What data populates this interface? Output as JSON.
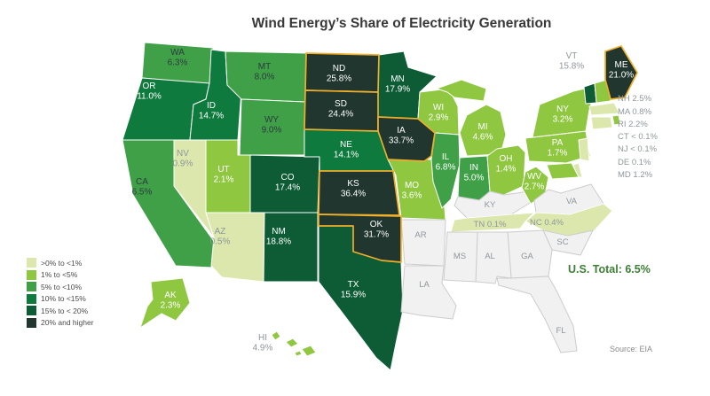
{
  "title": "Wind Energy’s Share of Electricity Generation",
  "us_total": "U.S. Total: 6.5%",
  "source": "Source: EIA",
  "colors": {
    "category_fills": [
      "#dbe7ad",
      "#8fc741",
      "#3fa047",
      "#0e7a3d",
      "#0d5c35",
      "#20362e"
    ],
    "no_data_fill": "#f1f1f1",
    "no_data_stroke": "#cccccc",
    "state_stroke": "#ffffff",
    "highlight_stroke": "#efae2d",
    "label_white": "#ffffff",
    "label_dark": "#2e3b40",
    "label_gray": "#8f979b",
    "us_total_color": "#3d7f35",
    "title_color": "#383838",
    "legend_text": "#4a4a4a",
    "source_color": "#8a8a8a"
  },
  "chart_data": {
    "type": "choropleth",
    "geography": "United States by state",
    "metric": "Wind energy's share of electricity generation",
    "unit": "percent",
    "us_total": "6.5%",
    "legend_categories": [
      ">0% to <1%",
      "1% to <5%",
      "5% to <10%",
      "10% to <15%",
      "15% to < 20%",
      "20% and higher"
    ],
    "states": [
      {
        "abbr": "WA",
        "value": "6.3%",
        "pct": 6.3,
        "category": 2,
        "label_color": "dark"
      },
      {
        "abbr": "OR",
        "value": "11.0%",
        "pct": 11.0,
        "category": 3,
        "label_color": "white"
      },
      {
        "abbr": "CA",
        "value": "6.5%",
        "pct": 6.5,
        "category": 2,
        "label_color": "dark"
      },
      {
        "abbr": "NV",
        "value": "0.9%",
        "pct": 0.9,
        "category": 0,
        "label_color": "gray"
      },
      {
        "abbr": "ID",
        "value": "14.7%",
        "pct": 14.7,
        "category": 3,
        "label_color": "white"
      },
      {
        "abbr": "MT",
        "value": "8.0%",
        "pct": 8.0,
        "category": 2,
        "label_color": "dark"
      },
      {
        "abbr": "WY",
        "value": "9.0%",
        "pct": 9.0,
        "category": 2,
        "label_color": "dark"
      },
      {
        "abbr": "UT",
        "value": "2.1%",
        "pct": 2.1,
        "category": 1,
        "label_color": "white"
      },
      {
        "abbr": "AZ",
        "value": "0.5%",
        "pct": 0.5,
        "category": 0,
        "label_color": "gray"
      },
      {
        "abbr": "CO",
        "value": "17.4%",
        "pct": 17.4,
        "category": 4,
        "label_color": "white"
      },
      {
        "abbr": "NM",
        "value": "18.8%",
        "pct": 18.8,
        "category": 4,
        "label_color": "white"
      },
      {
        "abbr": "ND",
        "value": "25.8%",
        "pct": 25.8,
        "category": 5,
        "label_color": "white",
        "highlight": true
      },
      {
        "abbr": "SD",
        "value": "24.4%",
        "pct": 24.4,
        "category": 5,
        "label_color": "white",
        "highlight": true
      },
      {
        "abbr": "NE",
        "value": "14.1%",
        "pct": 14.1,
        "category": 3,
        "label_color": "white"
      },
      {
        "abbr": "KS",
        "value": "36.4%",
        "pct": 36.4,
        "category": 5,
        "label_color": "white",
        "highlight": true
      },
      {
        "abbr": "OK",
        "value": "31.7%",
        "pct": 31.7,
        "category": 5,
        "label_color": "white",
        "highlight": true
      },
      {
        "abbr": "TX",
        "value": "15.9%",
        "pct": 15.9,
        "category": 4,
        "label_color": "white"
      },
      {
        "abbr": "MN",
        "value": "17.9%",
        "pct": 17.9,
        "category": 4,
        "label_color": "white"
      },
      {
        "abbr": "IA",
        "value": "33.7%",
        "pct": 33.7,
        "category": 5,
        "label_color": "white",
        "highlight": true
      },
      {
        "abbr": "MO",
        "value": "3.6%",
        "pct": 3.6,
        "category": 1,
        "label_color": "white"
      },
      {
        "abbr": "AR",
        "value": null,
        "pct": null,
        "category": null,
        "label_color": "gray"
      },
      {
        "abbr": "LA",
        "value": null,
        "pct": null,
        "category": null,
        "label_color": "gray"
      },
      {
        "abbr": "WI",
        "value": "2.9%",
        "pct": 2.9,
        "category": 1,
        "label_color": "white"
      },
      {
        "abbr": "IL",
        "value": "6.8%",
        "pct": 6.8,
        "category": 2,
        "label_color": "white"
      },
      {
        "abbr": "MI",
        "value": "4.6%",
        "pct": 4.6,
        "category": 1,
        "label_color": "white"
      },
      {
        "abbr": "IN",
        "value": "5.0%",
        "pct": 5.0,
        "category": 2,
        "label_color": "white"
      },
      {
        "abbr": "OH",
        "value": "1.4%",
        "pct": 1.4,
        "category": 1,
        "label_color": "white"
      },
      {
        "abbr": "KY",
        "value": null,
        "pct": null,
        "category": null,
        "label_color": "gray"
      },
      {
        "abbr": "WV",
        "value": "2.7%",
        "pct": 2.7,
        "category": 1,
        "label_color": "white"
      },
      {
        "abbr": "PA",
        "value": "1.7%",
        "pct": 1.7,
        "category": 1,
        "label_color": "white"
      },
      {
        "abbr": "NY",
        "value": "3.2%",
        "pct": 3.2,
        "category": 1,
        "label_color": "white"
      },
      {
        "abbr": "VT",
        "value": "15.8%",
        "pct": 15.8,
        "category": 4,
        "label_color": "gray"
      },
      {
        "abbr": "NH",
        "value": "2.5%",
        "pct": 2.5,
        "category": 1,
        "label_color": "gray"
      },
      {
        "abbr": "ME",
        "value": "21.0%",
        "pct": 21.0,
        "category": 5,
        "label_color": "white",
        "highlight": true
      },
      {
        "abbr": "MA",
        "value": "0.8%",
        "pct": 0.8,
        "category": 0,
        "label_color": "gray"
      },
      {
        "abbr": "RI",
        "value": "2.2%",
        "pct": 2.2,
        "category": 1,
        "label_color": "gray"
      },
      {
        "abbr": "CT",
        "value": "< 0.1%",
        "pct": null,
        "category": 0,
        "label_color": "gray"
      },
      {
        "abbr": "NJ",
        "value": "< 0.1%",
        "pct": null,
        "category": 0,
        "label_color": "gray"
      },
      {
        "abbr": "DE",
        "value": "0.1%",
        "pct": 0.1,
        "category": 0,
        "label_color": "gray"
      },
      {
        "abbr": "MD",
        "value": "1.2%",
        "pct": 1.2,
        "category": 1,
        "label_color": "gray"
      },
      {
        "abbr": "VA",
        "value": null,
        "pct": null,
        "category": null,
        "label_color": "gray"
      },
      {
        "abbr": "NC",
        "value": "0.4%",
        "pct": 0.4,
        "category": 0,
        "label_color": "gray"
      },
      {
        "abbr": "TN",
        "value": "0.1%",
        "pct": 0.1,
        "category": 0,
        "label_color": "gray"
      },
      {
        "abbr": "SC",
        "value": null,
        "pct": null,
        "category": null,
        "label_color": "gray"
      },
      {
        "abbr": "GA",
        "value": null,
        "pct": null,
        "category": null,
        "label_color": "gray"
      },
      {
        "abbr": "AL",
        "value": null,
        "pct": null,
        "category": null,
        "label_color": "gray"
      },
      {
        "abbr": "MS",
        "value": null,
        "pct": null,
        "category": null,
        "label_color": "gray"
      },
      {
        "abbr": "FL",
        "value": null,
        "pct": null,
        "category": null,
        "label_color": "gray"
      },
      {
        "abbr": "AK",
        "value": "2.3%",
        "pct": 2.3,
        "category": 1,
        "label_color": "white"
      },
      {
        "abbr": "HI",
        "value": "4.9%",
        "pct": 4.9,
        "category": 1,
        "label_color": "gray"
      }
    ]
  }
}
